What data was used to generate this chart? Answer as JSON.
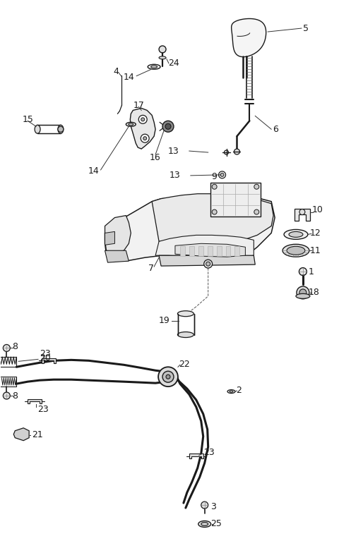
{
  "bg": "#ffffff",
  "lc": "#1a1a1a",
  "figsize": [
    4.8,
    7.94
  ],
  "dpi": 100
}
